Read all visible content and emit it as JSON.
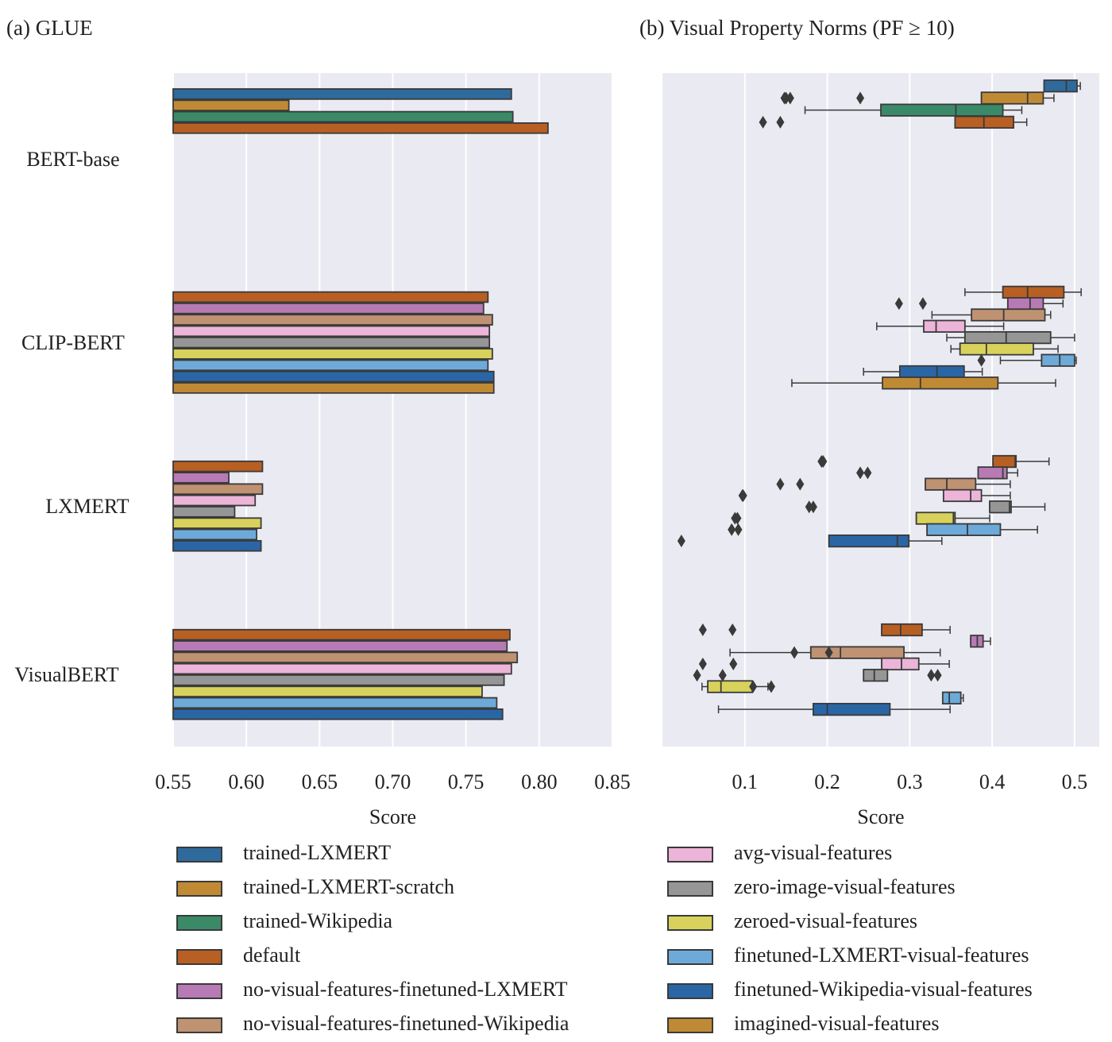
{
  "panels": {
    "a_title": "(a) GLUE",
    "b_title": "(b) Visual Property Norms (PF ≥ 10)"
  },
  "colors": {
    "trained-LXMERT": "#2f6a9c",
    "trained-LXMERT-scratch": "#c08a35",
    "trained-Wikipedia": "#3a8a68",
    "default": "#b85f24",
    "no-visual-features-finetuned-LXMERT": "#b77ab4",
    "no-visual-features-finetuned-Wikipedia": "#bf9272",
    "avg-visual-features": "#ecb4d8",
    "zero-image-visual-features": "#969696",
    "zeroed-visual-features": "#d8d25c",
    "finetuned-LXMERT-visual-features": "#6daad9",
    "finetuned-Wikipedia-visual-features": "#2a66a5",
    "imagined-visual-features": "#c08a35"
  },
  "legend": {
    "left": [
      "trained-LXMERT",
      "trained-LXMERT-scratch",
      "trained-Wikipedia",
      "default",
      "no-visual-features-finetuned-LXMERT",
      "no-visual-features-finetuned-Wikipedia"
    ],
    "right": [
      "avg-visual-features",
      "zero-image-visual-features",
      "zeroed-visual-features",
      "finetuned-LXMERT-visual-features",
      "finetuned-Wikipedia-visual-features",
      "imagined-visual-features"
    ]
  },
  "chart_data": [
    {
      "type": "bar",
      "orientation": "horizontal",
      "title": "(a) GLUE",
      "xlabel": "Score",
      "ylabel": "",
      "xlim": [
        0.55,
        0.85
      ],
      "xticks": [
        "0.55",
        "0.60",
        "0.65",
        "0.70",
        "0.75",
        "0.80",
        "0.85"
      ],
      "grid": true,
      "categories": [
        "BERT-base",
        "CLIP-BERT",
        "LXMERT",
        "VisualBERT"
      ],
      "groups": [
        {
          "category": "BERT-base",
          "bars": [
            {
              "series": "trained-LXMERT",
              "value": 0.781
            },
            {
              "series": "trained-LXMERT-scratch",
              "value": 0.629
            },
            {
              "series": "trained-Wikipedia",
              "value": 0.782
            },
            {
              "series": "default",
              "value": 0.806
            }
          ]
        },
        {
          "category": "CLIP-BERT",
          "bars": [
            {
              "series": "default",
              "value": 0.765
            },
            {
              "series": "no-visual-features-finetuned-LXMERT",
              "value": 0.762
            },
            {
              "series": "no-visual-features-finetuned-Wikipedia",
              "value": 0.768
            },
            {
              "series": "avg-visual-features",
              "value": 0.766
            },
            {
              "series": "zero-image-visual-features",
              "value": 0.766
            },
            {
              "series": "zeroed-visual-features",
              "value": 0.768
            },
            {
              "series": "finetuned-LXMERT-visual-features",
              "value": 0.765
            },
            {
              "series": "finetuned-Wikipedia-visual-features",
              "value": 0.769
            },
            {
              "series": "imagined-visual-features",
              "value": 0.769
            }
          ]
        },
        {
          "category": "LXMERT",
          "bars": [
            {
              "series": "default",
              "value": 0.611
            },
            {
              "series": "no-visual-features-finetuned-LXMERT",
              "value": 0.588
            },
            {
              "series": "no-visual-features-finetuned-Wikipedia",
              "value": 0.611
            },
            {
              "series": "avg-visual-features",
              "value": 0.606
            },
            {
              "series": "zero-image-visual-features",
              "value": 0.592
            },
            {
              "series": "zeroed-visual-features",
              "value": 0.61
            },
            {
              "series": "finetuned-LXMERT-visual-features",
              "value": 0.607
            },
            {
              "series": "finetuned-Wikipedia-visual-features",
              "value": 0.61
            }
          ]
        },
        {
          "category": "VisualBERT",
          "bars": [
            {
              "series": "default",
              "value": 0.78
            },
            {
              "series": "no-visual-features-finetuned-LXMERT",
              "value": 0.778
            },
            {
              "series": "no-visual-features-finetuned-Wikipedia",
              "value": 0.785
            },
            {
              "series": "avg-visual-features",
              "value": 0.781
            },
            {
              "series": "zero-image-visual-features",
              "value": 0.776
            },
            {
              "series": "zeroed-visual-features",
              "value": 0.761
            },
            {
              "series": "finetuned-LXMERT-visual-features",
              "value": 0.771
            },
            {
              "series": "finetuned-Wikipedia-visual-features",
              "value": 0.775
            }
          ]
        }
      ]
    },
    {
      "type": "boxplot",
      "orientation": "horizontal",
      "title": "(b) Visual Property Norms (PF ≥ 10)",
      "xlabel": "Score",
      "ylabel": "",
      "xlim": [
        0.0,
        0.53
      ],
      "xticks": [
        "0.1",
        "0.2",
        "0.3",
        "0.4",
        "0.5"
      ],
      "grid": true,
      "categories": [
        "BERT-base",
        "CLIP-BERT",
        "LXMERT",
        "VisualBERT"
      ],
      "groups": [
        {
          "category": "BERT-base",
          "boxes": [
            {
              "series": "trained-LXMERT",
              "min": 0.463,
              "q1": 0.463,
              "median": 0.49,
              "q3": 0.503,
              "max": 0.507,
              "outliers": []
            },
            {
              "series": "trained-LXMERT-scratch",
              "min": 0.387,
              "q1": 0.387,
              "median": 0.443,
              "q3": 0.462,
              "max": 0.475,
              "outliers": [
                0.155,
                0.15,
                0.148,
                0.24
              ]
            },
            {
              "series": "trained-Wikipedia",
              "min": 0.173,
              "q1": 0.265,
              "median": 0.356,
              "q3": 0.413,
              "max": 0.436,
              "outliers": []
            },
            {
              "series": "default",
              "min": 0.355,
              "q1": 0.355,
              "median": 0.39,
              "q3": 0.426,
              "max": 0.442,
              "outliers": [
                0.122,
                0.143
              ]
            }
          ]
        },
        {
          "category": "CLIP-BERT",
          "boxes": [
            {
              "series": "default",
              "min": 0.367,
              "q1": 0.413,
              "median": 0.443,
              "q3": 0.487,
              "max": 0.508,
              "outliers": []
            },
            {
              "series": "no-visual-features-finetuned-LXMERT",
              "min": 0.419,
              "q1": 0.419,
              "median": 0.446,
              "q3": 0.462,
              "max": 0.486,
              "outliers": [
                0.287,
                0.316
              ]
            },
            {
              "series": "no-visual-features-finetuned-Wikipedia",
              "min": 0.327,
              "q1": 0.375,
              "median": 0.414,
              "q3": 0.464,
              "max": 0.471,
              "outliers": []
            },
            {
              "series": "avg-visual-features",
              "min": 0.26,
              "q1": 0.317,
              "median": 0.332,
              "q3": 0.367,
              "max": 0.414,
              "outliers": []
            },
            {
              "series": "zero-image-visual-features",
              "min": 0.345,
              "q1": 0.367,
              "median": 0.417,
              "q3": 0.471,
              "max": 0.5,
              "outliers": []
            },
            {
              "series": "zeroed-visual-features",
              "min": 0.35,
              "q1": 0.361,
              "median": 0.393,
              "q3": 0.45,
              "max": 0.48,
              "outliers": []
            },
            {
              "series": "finetuned-LXMERT-visual-features",
              "min": 0.41,
              "q1": 0.46,
              "median": 0.482,
              "q3": 0.5,
              "max": 0.502,
              "outliers": [
                0.387
              ]
            },
            {
              "series": "finetuned-Wikipedia-visual-features",
              "min": 0.244,
              "q1": 0.288,
              "median": 0.333,
              "q3": 0.366,
              "max": 0.388,
              "outliers": []
            },
            {
              "series": "imagined-visual-features",
              "min": 0.157,
              "q1": 0.267,
              "median": 0.313,
              "q3": 0.407,
              "max": 0.477,
              "outliers": []
            }
          ]
        },
        {
          "category": "LXMERT",
          "boxes": [
            {
              "series": "default",
              "min": 0.401,
              "q1": 0.401,
              "median": 0.428,
              "q3": 0.429,
              "max": 0.469,
              "outliers": [
                0.193,
                0.195
              ]
            },
            {
              "series": "no-visual-features-finetuned-LXMERT",
              "min": 0.383,
              "q1": 0.383,
              "median": 0.413,
              "q3": 0.418,
              "max": 0.431,
              "outliers": [
                0.24,
                0.249
              ]
            },
            {
              "series": "no-visual-features-finetuned-Wikipedia",
              "min": 0.319,
              "q1": 0.319,
              "median": 0.345,
              "q3": 0.38,
              "max": 0.422,
              "outliers": [
                0.143,
                0.167
              ]
            },
            {
              "series": "avg-visual-features",
              "min": 0.341,
              "q1": 0.341,
              "median": 0.374,
              "q3": 0.387,
              "max": 0.422,
              "outliers": [
                0.097,
                0.098
              ]
            },
            {
              "series": "zero-image-visual-features",
              "min": 0.397,
              "q1": 0.397,
              "median": 0.421,
              "q3": 0.423,
              "max": 0.464,
              "outliers": [
                0.178,
                0.183
              ]
            },
            {
              "series": "zeroed-visual-features",
              "min": 0.308,
              "q1": 0.308,
              "median": 0.353,
              "q3": 0.355,
              "max": 0.397,
              "outliers": [
                0.088,
                0.091
              ]
            },
            {
              "series": "finetuned-LXMERT-visual-features",
              "min": 0.321,
              "q1": 0.321,
              "median": 0.37,
              "q3": 0.41,
              "max": 0.455,
              "outliers": [
                0.084,
                0.092
              ]
            },
            {
              "series": "finetuned-Wikipedia-visual-features",
              "min": 0.202,
              "q1": 0.202,
              "median": 0.285,
              "q3": 0.299,
              "max": 0.339,
              "outliers": [
                0.023
              ]
            }
          ]
        },
        {
          "category": "VisualBERT",
          "boxes": [
            {
              "series": "default",
              "min": 0.266,
              "q1": 0.266,
              "median": 0.289,
              "q3": 0.315,
              "max": 0.349,
              "outliers": [
                0.049,
                0.085
              ]
            },
            {
              "series": "no-visual-features-finetuned-LXMERT",
              "min": 0.374,
              "q1": 0.374,
              "median": 0.382,
              "q3": 0.389,
              "max": 0.398,
              "outliers": []
            },
            {
              "series": "no-visual-features-finetuned-Wikipedia",
              "min": 0.082,
              "q1": 0.18,
              "median": 0.216,
              "q3": 0.293,
              "max": 0.337,
              "outliers": [
                0.16,
                0.202
              ]
            },
            {
              "series": "avg-visual-features",
              "min": 0.266,
              "q1": 0.266,
              "median": 0.29,
              "q3": 0.311,
              "max": 0.348,
              "outliers": [
                0.049,
                0.086
              ]
            },
            {
              "series": "zero-image-visual-features",
              "min": 0.244,
              "q1": 0.244,
              "median": 0.257,
              "q3": 0.273,
              "max": 0.273,
              "outliers": [
                0.042,
                0.073,
                0.326,
                0.334
              ]
            },
            {
              "series": "zeroed-visual-features",
              "min": 0.048,
              "q1": 0.055,
              "median": 0.071,
              "q3": 0.109,
              "max": 0.128,
              "outliers": [
                0.11,
                0.132
              ]
            },
            {
              "series": "finetuned-LXMERT-visual-features",
              "min": 0.34,
              "q1": 0.34,
              "median": 0.348,
              "q3": 0.362,
              "max": 0.365,
              "outliers": []
            },
            {
              "series": "finetuned-Wikipedia-visual-features",
              "min": 0.068,
              "q1": 0.183,
              "median": 0.2,
              "q3": 0.276,
              "max": 0.349,
              "outliers": []
            }
          ]
        }
      ]
    }
  ]
}
